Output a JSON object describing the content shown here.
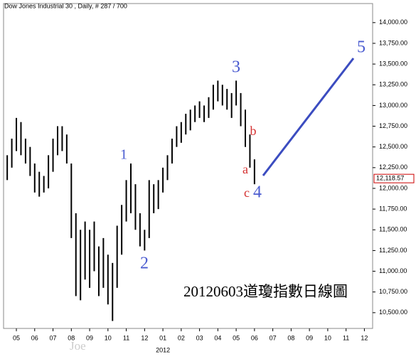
{
  "chart_data": {
    "type": "range-bar",
    "title": "Dow Jones Industrial 30 , Daily, # 287 / 700",
    "caption": "20120603道瓊指數日線圖",
    "watermark": "Joe",
    "year_label": "2012",
    "last_price": {
      "value": 12118.57,
      "label": "12,118.57"
    },
    "color": "#000000",
    "wave_color": "#3b4cc0",
    "annotations": [
      {
        "text": "1",
        "color": "#4a5bd0"
      },
      {
        "text": "2",
        "color": "#4a5bd0"
      },
      {
        "text": "3",
        "color": "#4a5bd0"
      },
      {
        "text": "a",
        "color": "#d43030"
      },
      {
        "text": "b",
        "color": "#d43030"
      },
      {
        "text": "c",
        "color": "#d43030"
      },
      {
        "text": "4",
        "color": "#4a5bd0"
      },
      {
        "text": "5",
        "color": "#4a5bd0"
      }
    ],
    "x": [
      0.5,
      0.75,
      1.0,
      1.25,
      1.5,
      1.75,
      2.0,
      2.25,
      2.5,
      2.75,
      3.0,
      3.25,
      3.5,
      3.75,
      4.0,
      4.25,
      4.5,
      4.75,
      5.0,
      5.25,
      5.5,
      5.75,
      6.0,
      6.25,
      6.5,
      6.75,
      7.0,
      7.25,
      7.5,
      7.75,
      8.0,
      8.25,
      8.5,
      8.75,
      9.0,
      9.25,
      9.5,
      9.75,
      10.0,
      10.25,
      10.5,
      10.75,
      11.0,
      11.25,
      11.5,
      11.75,
      12.0,
      12.25,
      12.5,
      12.75,
      13.0,
      13.25,
      13.5,
      13.75,
      14.0
    ],
    "high": [
      12400,
      12600,
      12850,
      12800,
      12600,
      12500,
      12300,
      12200,
      12150,
      12400,
      12600,
      12750,
      12750,
      12650,
      12300,
      11700,
      11500,
      11600,
      11500,
      11600,
      11300,
      11400,
      11200,
      11100,
      11550,
      11800,
      12100,
      12300,
      12050,
      11700,
      11500,
      12100,
      12050,
      12100,
      12250,
      12400,
      12600,
      12750,
      12800,
      12900,
      12950,
      13000,
      13050,
      13000,
      13100,
      13250,
      13300,
      13250,
      13200,
      13150,
      13300,
      13150,
      12950,
      12650,
      12350
    ],
    "low": [
      12100,
      12250,
      12450,
      12400,
      12300,
      12150,
      11950,
      11900,
      11950,
      12000,
      12200,
      12400,
      12450,
      12300,
      11400,
      10700,
      10650,
      10900,
      10800,
      11000,
      10700,
      10800,
      10600,
      10400,
      10800,
      11200,
      11600,
      11700,
      11500,
      11300,
      11250,
      11400,
      11700,
      11750,
      11950,
      12100,
      12300,
      12500,
      12550,
      12650,
      12700,
      12800,
      12850,
      12800,
      12850,
      12950,
      13050,
      13000,
      12950,
      12850,
      13000,
      12750,
      12500,
      12250,
      12050
    ],
    "xlim": [
      0.3,
      20.45
    ],
    "xticks": [
      {
        "value": 1,
        "label": "05"
      },
      {
        "value": 2,
        "label": "06"
      },
      {
        "value": 3,
        "label": "07"
      },
      {
        "value": 4,
        "label": "08"
      },
      {
        "value": 5,
        "label": "09"
      },
      {
        "value": 6,
        "label": "10"
      },
      {
        "value": 7,
        "label": "11"
      },
      {
        "value": 8,
        "label": "12"
      },
      {
        "value": 9,
        "label": "01"
      },
      {
        "value": 10,
        "label": "02"
      },
      {
        "value": 11,
        "label": "03"
      },
      {
        "value": 12,
        "label": "04"
      },
      {
        "value": 13,
        "label": "05"
      },
      {
        "value": 14,
        "label": "06"
      },
      {
        "value": 15,
        "label": "07"
      },
      {
        "value": 16,
        "label": "08"
      },
      {
        "value": 17,
        "label": "09"
      },
      {
        "value": 18,
        "label": "10"
      },
      {
        "value": 19,
        "label": "11"
      },
      {
        "value": 20,
        "label": "12"
      }
    ],
    "ylim": [
      10310,
      14230
    ],
    "yticks": [
      {
        "value": 10500,
        "label": "10,500.00"
      },
      {
        "value": 10750,
        "label": "10,750.00"
      },
      {
        "value": 11000,
        "label": "11,000.00"
      },
      {
        "value": 11250,
        "label": "11,250.00"
      },
      {
        "value": 11500,
        "label": "11,500.00"
      },
      {
        "value": 11750,
        "label": "11,750.00"
      },
      {
        "value": 12000,
        "label": "12,000.00"
      },
      {
        "value": 12250,
        "label": "12,250.00"
      },
      {
        "value": 12500,
        "label": "12,500.00"
      },
      {
        "value": 12750,
        "label": "12,750.00"
      },
      {
        "value": 13000,
        "label": "13,000.00"
      },
      {
        "value": 13250,
        "label": "13,250.00"
      },
      {
        "value": 13500,
        "label": "13,500.00"
      },
      {
        "value": 13750,
        "label": "13,750.00"
      },
      {
        "value": 14000,
        "label": "14,000.00"
      }
    ]
  }
}
